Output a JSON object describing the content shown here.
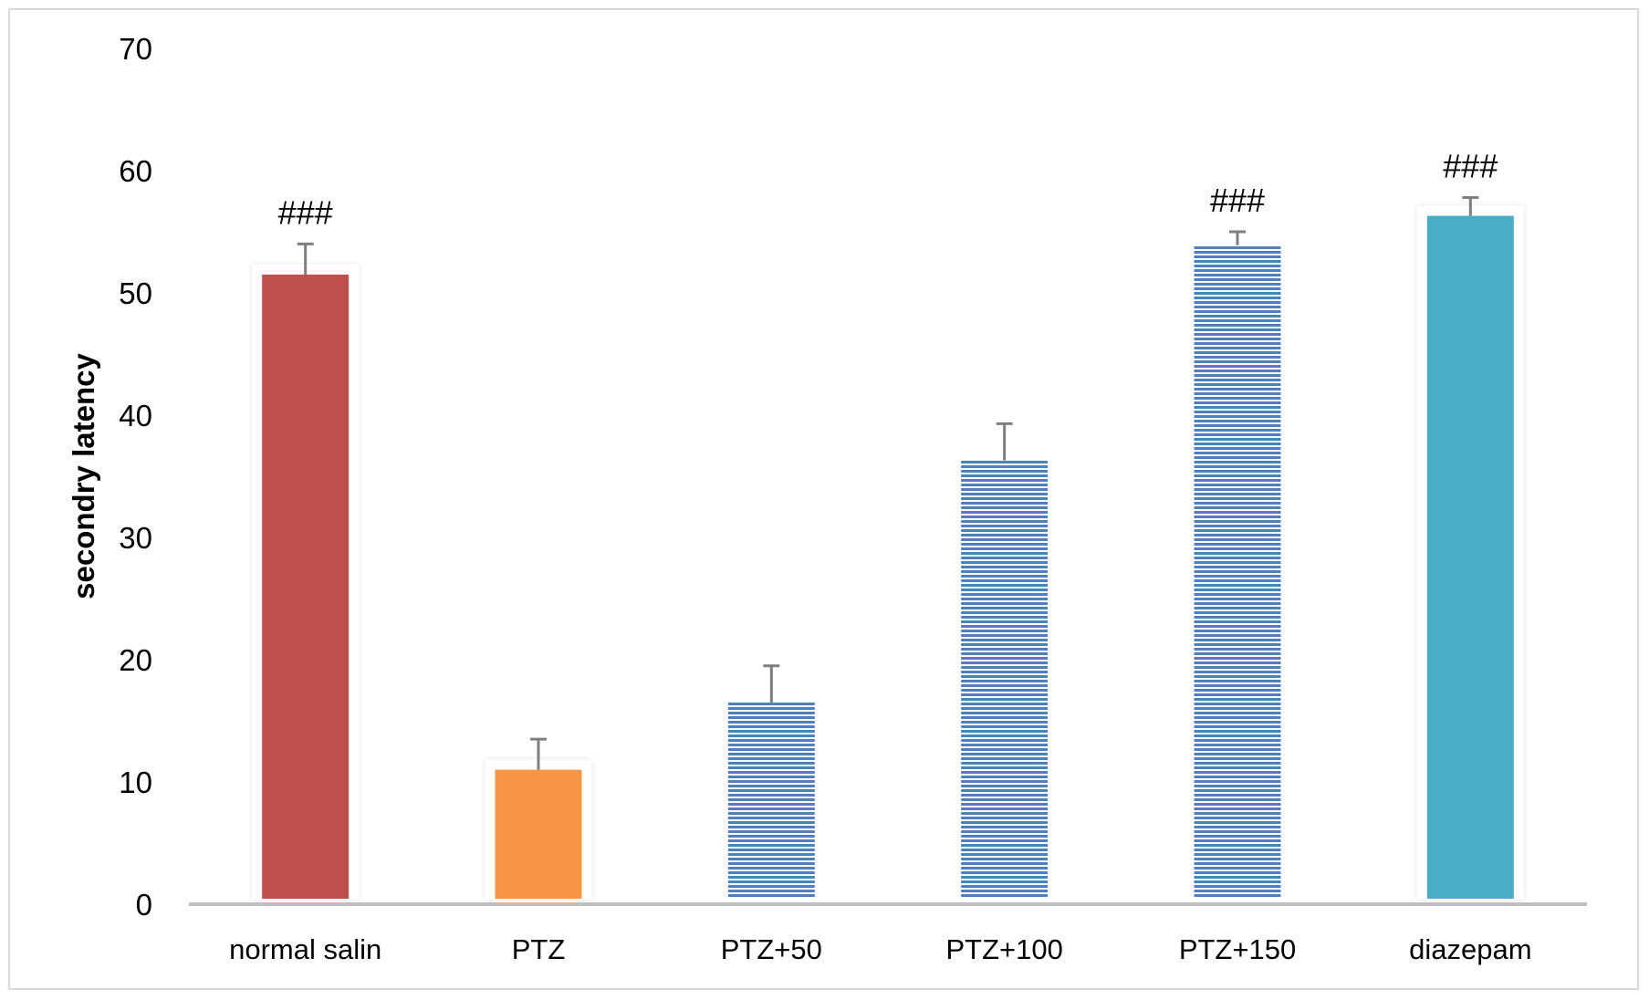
{
  "chart_data": {
    "type": "bar",
    "ylabel": "secondry latency",
    "xlabel": "",
    "ylim": [
      0,
      70
    ],
    "yticks": [
      "0",
      "10",
      "20",
      "30",
      "40",
      "50",
      "60",
      "70"
    ],
    "grid": false,
    "categories": [
      "normal salin",
      "PTZ",
      "PTZ+50",
      "PTZ+100",
      "PTZ+150",
      "diazepam"
    ],
    "values": [
      51.5,
      11,
      16.5,
      36.3,
      53.9,
      56.3
    ],
    "error": [
      2.5,
      2.5,
      3,
      3,
      1.1,
      1.5
    ],
    "annotations": [
      "###",
      "",
      "",
      "",
      "###",
      "###"
    ],
    "colors": [
      "#c0504d",
      "#f79646",
      "#4f81bd",
      "#4f81bd",
      "#4f81bd",
      "#4bacc6"
    ],
    "patterns": [
      "solid",
      "solid",
      "horizontal-stripes",
      "horizontal-stripes",
      "horizontal-stripes",
      "solid"
    ]
  }
}
